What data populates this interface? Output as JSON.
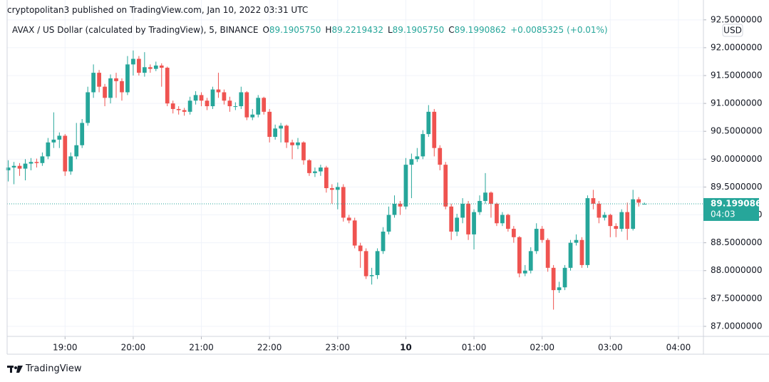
{
  "header": {
    "published": "cryptopolitan3 published on TradingView.com, Jan 10, 2022 03:31 UTC",
    "symbol": "AVAX / US Dollar (calculated by TradingView), 5, BINANCE",
    "readout": [
      {
        "key": "O",
        "value": "89.1905750"
      },
      {
        "key": "H",
        "value": "89.2219432"
      },
      {
        "key": "L",
        "value": "89.1905750"
      },
      {
        "key": "C",
        "value": "89.1990862"
      }
    ],
    "change": "+0.0085325",
    "change_pct": "(+0.01%)"
  },
  "chart_data": {
    "type": "candlestick",
    "currency": "USD",
    "up_color": "#26a69a",
    "down_color": "#ef5350",
    "x": [
      "18:10",
      "18:15",
      "18:20",
      "18:25",
      "18:30",
      "18:35",
      "18:40",
      "18:45",
      "18:50",
      "18:55",
      "19:00",
      "19:05",
      "19:10",
      "19:15",
      "19:20",
      "19:25",
      "19:30",
      "19:35",
      "19:40",
      "19:45",
      "19:50",
      "19:55",
      "20:00",
      "20:05",
      "20:10",
      "20:15",
      "20:20",
      "20:25",
      "20:30",
      "20:35",
      "20:40",
      "20:45",
      "20:50",
      "20:55",
      "21:00",
      "21:05",
      "21:10",
      "21:15",
      "21:20",
      "21:25",
      "21:30",
      "21:35",
      "21:40",
      "21:45",
      "21:50",
      "21:55",
      "22:00",
      "22:05",
      "22:10",
      "22:15",
      "22:20",
      "22:25",
      "22:30",
      "22:35",
      "22:40",
      "22:45",
      "22:50",
      "22:55",
      "23:00",
      "23:05",
      "23:10",
      "23:15",
      "23:20",
      "23:25",
      "23:30",
      "23:35",
      "23:40",
      "23:45",
      "23:50",
      "23:55",
      "00:00",
      "00:05",
      "00:10",
      "00:15",
      "00:20",
      "00:25",
      "00:30",
      "00:35",
      "00:40",
      "00:45",
      "00:50",
      "00:55",
      "01:00",
      "01:05",
      "01:10",
      "01:15",
      "01:20",
      "01:25",
      "01:30",
      "01:35",
      "01:40",
      "01:45",
      "01:50",
      "01:55",
      "02:00",
      "02:05",
      "02:10",
      "02:15",
      "02:20",
      "02:25",
      "02:30",
      "02:35",
      "02:40",
      "02:45",
      "02:50",
      "02:55",
      "03:00",
      "03:05",
      "03:10",
      "03:15",
      "03:20",
      "03:25",
      "03:30"
    ],
    "open": [
      89.8,
      89.85,
      89.88,
      89.83,
      89.92,
      89.95,
      89.93,
      90.05,
      90.3,
      90.35,
      90.42,
      89.78,
      90.05,
      90.25,
      90.65,
      91.2,
      91.55,
      91.3,
      91.1,
      91.45,
      91.4,
      91.2,
      91.7,
      91.8,
      91.55,
      91.65,
      91.62,
      91.68,
      91.64,
      91.0,
      90.9,
      90.88,
      90.85,
      91.05,
      91.15,
      91.05,
      90.95,
      91.25,
      91.2,
      91.05,
      90.95,
      90.95,
      91.2,
      90.75,
      90.8,
      91.1,
      90.85,
      90.4,
      90.55,
      90.6,
      90.3,
      90.25,
      90.3,
      89.98,
      89.75,
      89.78,
      89.85,
      89.48,
      89.45,
      89.5,
      88.95,
      88.9,
      88.45,
      88.35,
      87.9,
      87.92,
      88.35,
      88.7,
      89.0,
      89.2,
      89.15,
      89.9,
      90.0,
      90.05,
      90.45,
      90.85,
      90.2,
      89.9,
      89.15,
      88.7,
      88.95,
      89.2,
      88.65,
      89.05,
      89.25,
      89.4,
      89.2,
      88.85,
      89.0,
      88.75,
      88.6,
      87.95,
      88.0,
      88.35,
      88.75,
      88.55,
      88.05,
      87.65,
      87.7,
      88.05,
      88.5,
      88.55,
      88.1,
      89.3,
      89.2,
      88.95,
      89.0,
      88.8,
      88.75,
      89.05,
      88.75,
      89.28,
      89.190575
    ],
    "high": [
      89.98,
      89.95,
      89.93,
      90.0,
      90.02,
      90.01,
      90.12,
      90.38,
      90.84,
      90.48,
      90.45,
      90.12,
      90.65,
      90.72,
      91.3,
      91.7,
      91.6,
      91.35,
      91.52,
      91.55,
      91.45,
      91.85,
      91.95,
      91.85,
      91.92,
      91.7,
      91.75,
      91.72,
      91.66,
      91.05,
      90.95,
      90.92,
      91.12,
      91.22,
      91.2,
      91.1,
      91.3,
      91.55,
      91.25,
      91.12,
      91.02,
      91.3,
      91.22,
      90.9,
      91.15,
      91.12,
      90.9,
      90.62,
      90.65,
      90.62,
      90.35,
      90.38,
      90.32,
      90.0,
      89.85,
      89.9,
      89.88,
      89.55,
      89.58,
      89.55,
      89.0,
      88.95,
      88.5,
      88.4,
      88.05,
      88.4,
      88.78,
      89.15,
      89.35,
      89.25,
      90.02,
      90.1,
      90.2,
      90.52,
      90.97,
      90.9,
      90.25,
      89.95,
      89.2,
      89.02,
      89.3,
      89.25,
      89.1,
      89.35,
      89.75,
      89.42,
      89.22,
      89.05,
      89.02,
      88.8,
      88.62,
      88.1,
      88.42,
      88.85,
      88.8,
      88.58,
      88.1,
      87.8,
      88.1,
      88.55,
      88.65,
      88.6,
      89.35,
      89.45,
      89.25,
      89.05,
      89.02,
      88.85,
      89.1,
      89.22,
      89.45,
      89.32,
      89.2219432
    ],
    "low": [
      89.6,
      89.55,
      89.7,
      89.62,
      89.8,
      89.85,
      89.88,
      90.0,
      90.2,
      90.2,
      89.7,
      89.72,
      90.0,
      90.2,
      90.6,
      91.1,
      91.2,
      90.95,
      91.0,
      91.1,
      91.05,
      91.15,
      91.5,
      91.5,
      91.48,
      91.55,
      91.58,
      91.3,
      90.95,
      90.82,
      90.8,
      90.78,
      90.8,
      90.98,
      90.95,
      90.88,
      90.9,
      91.1,
      90.98,
      90.85,
      90.88,
      90.9,
      90.7,
      90.7,
      90.75,
      90.8,
      90.3,
      90.35,
      90.3,
      90.2,
      90.0,
      90.18,
      89.9,
      89.7,
      89.68,
      89.7,
      89.4,
      89.2,
      89.1,
      88.88,
      88.85,
      88.4,
      88.05,
      87.85,
      87.75,
      87.85,
      88.3,
      88.65,
      88.95,
      89.0,
      89.1,
      89.3,
      89.95,
      90.0,
      90.4,
      90.05,
      89.8,
      89.1,
      88.55,
      88.62,
      88.85,
      88.55,
      88.38,
      89.0,
      89.2,
      88.95,
      88.8,
      88.8,
      88.7,
      88.5,
      87.88,
      87.9,
      87.95,
      88.3,
      88.5,
      87.98,
      87.3,
      87.6,
      87.65,
      88.0,
      88.45,
      88.05,
      88.05,
      89.1,
      88.85,
      88.9,
      88.6,
      88.6,
      88.7,
      88.55,
      88.72,
      89.15,
      89.190575
    ],
    "close": [
      89.85,
      89.88,
      89.83,
      89.92,
      89.95,
      89.93,
      90.05,
      90.3,
      90.35,
      90.42,
      89.78,
      90.05,
      90.25,
      90.65,
      91.2,
      91.55,
      91.3,
      91.1,
      91.45,
      91.4,
      91.2,
      91.7,
      91.8,
      91.55,
      91.65,
      91.62,
      91.68,
      91.64,
      91.0,
      90.9,
      90.88,
      90.85,
      91.05,
      91.15,
      91.05,
      90.95,
      91.25,
      91.2,
      91.05,
      90.95,
      90.95,
      91.2,
      90.75,
      90.8,
      91.1,
      90.85,
      90.4,
      90.55,
      90.6,
      90.3,
      90.25,
      90.3,
      89.98,
      89.75,
      89.78,
      89.85,
      89.48,
      89.45,
      89.5,
      88.95,
      88.9,
      88.45,
      88.35,
      87.9,
      87.92,
      88.35,
      88.7,
      89.0,
      89.2,
      89.15,
      89.9,
      90.0,
      90.05,
      90.45,
      90.85,
      90.2,
      89.9,
      89.15,
      88.7,
      88.95,
      89.2,
      88.65,
      89.05,
      89.25,
      89.4,
      89.2,
      88.85,
      89.0,
      88.75,
      88.6,
      87.95,
      88.0,
      88.35,
      88.75,
      88.55,
      88.05,
      87.65,
      87.7,
      88.05,
      88.5,
      88.55,
      88.1,
      89.3,
      89.2,
      88.95,
      89.0,
      88.8,
      88.75,
      89.05,
      88.75,
      89.28,
      89.22,
      89.1990862
    ],
    "countdown": "04:03",
    "xlim": [
      "18:09",
      "04:22"
    ],
    "xticks": [
      "19:00",
      "20:00",
      "21:00",
      "22:00",
      "23:00",
      {
        "value": "00:00",
        "label": "10"
      },
      "01:00",
      "02:00",
      "03:00",
      "04:00"
    ],
    "ylim": [
      86.82,
      92.6
    ],
    "yticks": [
      {
        "value": 87,
        "label": "87.0000000"
      },
      {
        "value": 87.5,
        "label": "87.5000000"
      },
      {
        "value": 88,
        "label": "88.0000000"
      },
      {
        "value": 88.5,
        "label": "88.5000000"
      },
      {
        "value": 89,
        "label": "89.0000000"
      },
      {
        "value": 89.5,
        "label": "89.5000000"
      },
      {
        "value": 90,
        "label": "90.0000000"
      },
      {
        "value": 90.5,
        "label": "90.5000000"
      },
      {
        "value": 91,
        "label": "91.0000000"
      },
      {
        "value": 91.5,
        "label": "91.5000000"
      },
      {
        "value": 92,
        "label": "92.0000000"
      },
      {
        "value": 92.5,
        "label": "92.5000000"
      }
    ],
    "grid": true
  },
  "footer": {
    "brand": "TradingView"
  }
}
